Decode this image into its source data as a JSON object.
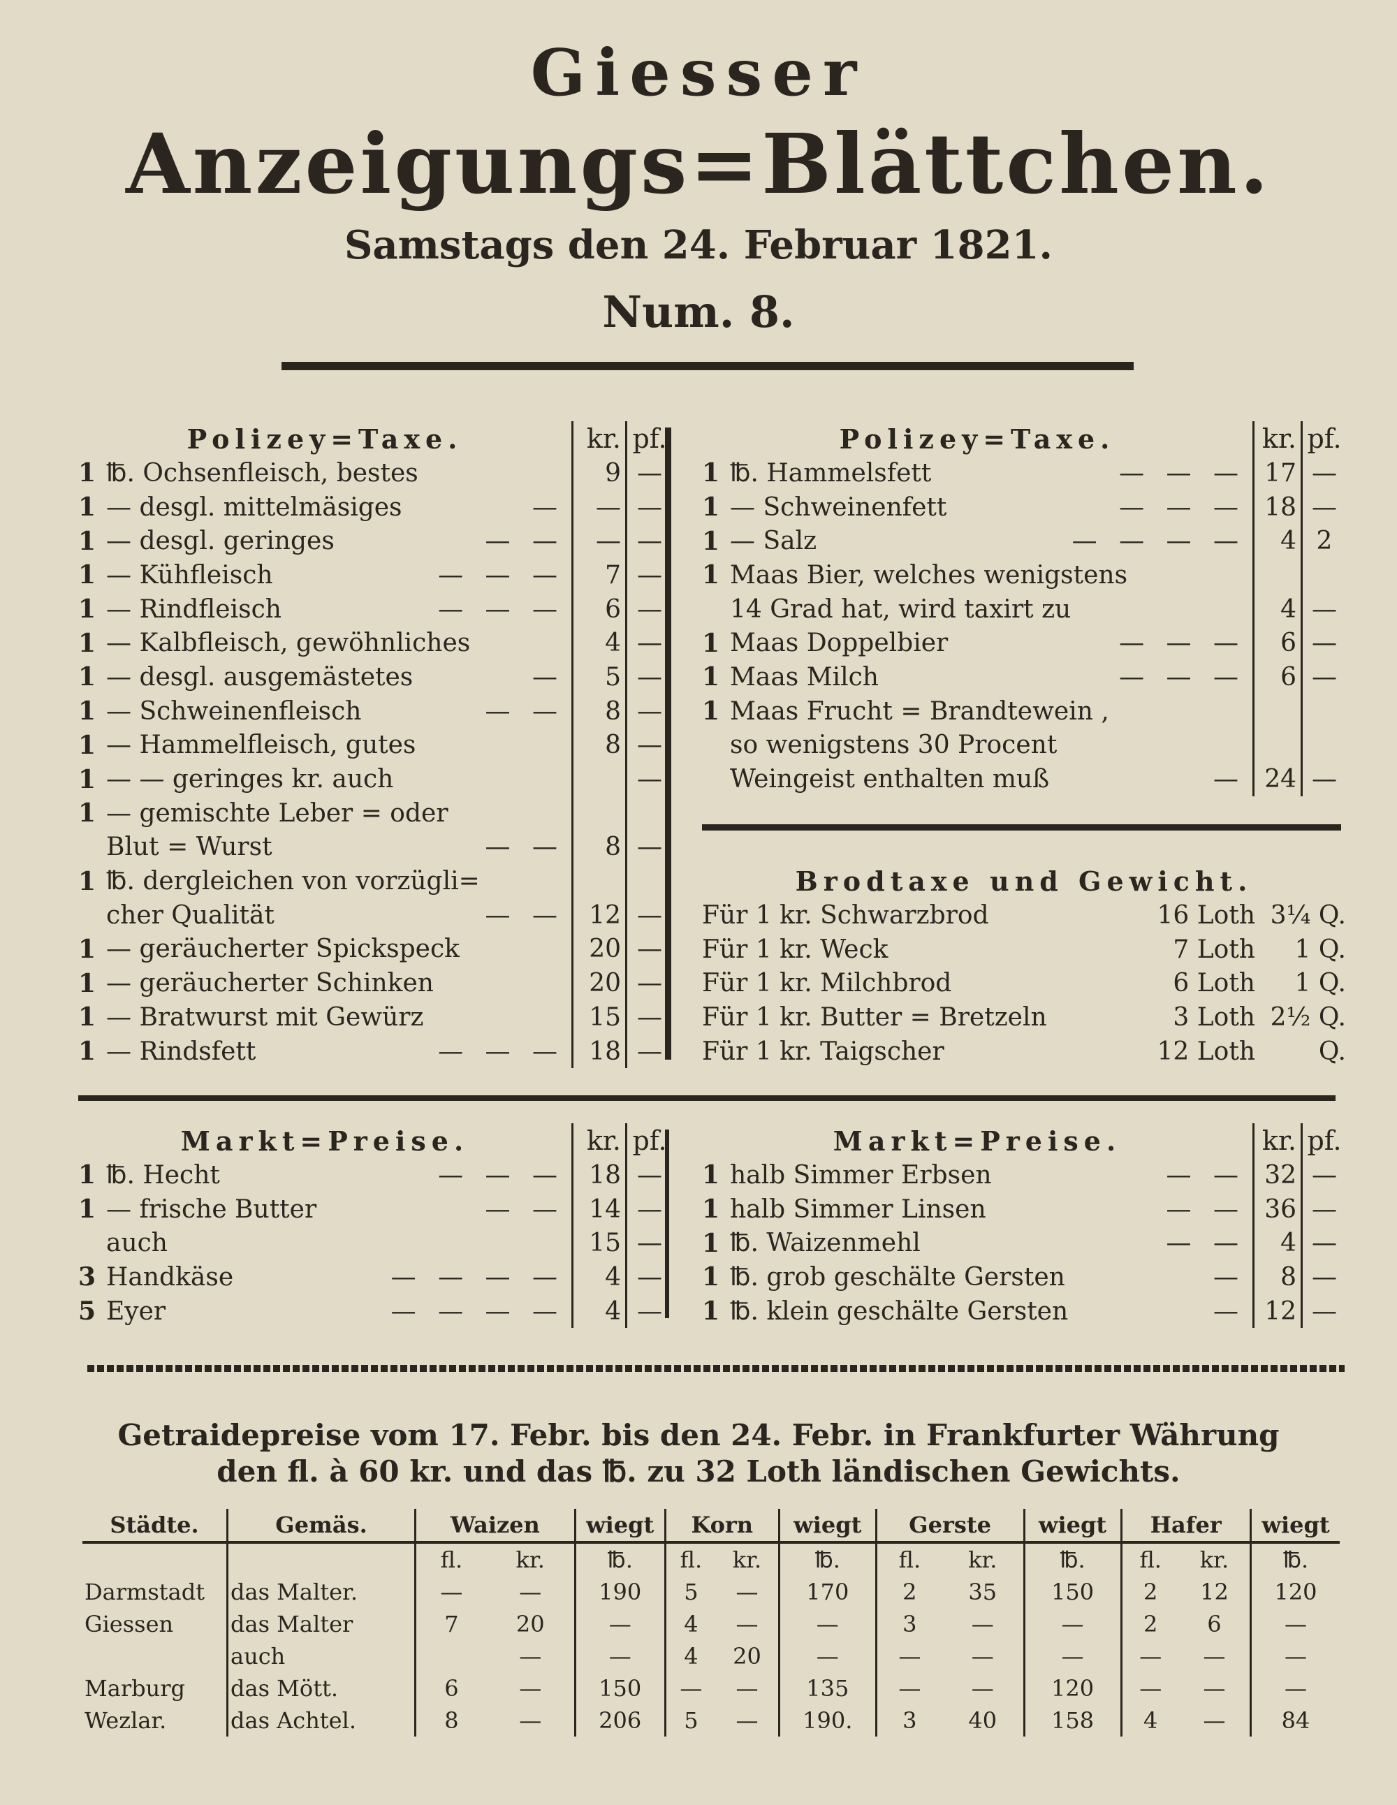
{
  "masthead": {
    "line1": "Giesser",
    "line2": "Anzeigungs=Blättchen.",
    "date": "Samstags den 24. Februar 1821.",
    "number": "Num. 8."
  },
  "polizey_left": {
    "title": "Polizey=Taxe.",
    "kr": "kr.",
    "pf": "pf.",
    "rows": [
      [
        "1",
        "℔. Ochsenfleisch, bestes",
        "",
        "9",
        "—"
      ],
      [
        "1",
        "— desgl. mittelmäsiges",
        "—",
        "—",
        "—"
      ],
      [
        "1",
        "— desgl. geringes",
        "— —",
        "—",
        "—"
      ],
      [
        "1",
        "— Kühfleisch",
        "— — —",
        "7",
        "—"
      ],
      [
        "1",
        "— Rindfleisch",
        "— — —",
        "6",
        "—"
      ],
      [
        "1",
        "— Kalbfleisch, gewöhnliches",
        "",
        "4",
        "—"
      ],
      [
        "1",
        "— desgl. ausgemästetes",
        "—",
        "5",
        "—"
      ],
      [
        "1",
        "— Schweinenfleisch",
        "— —",
        "8",
        "—"
      ],
      [
        "1",
        "— Hammelfleisch, gutes",
        "",
        "8",
        "—"
      ],
      [
        "1",
        "— — geringes kr. auch",
        "",
        "",
        "—"
      ],
      [
        "1",
        "— gemischte Leber = oder",
        "",
        "",
        ""
      ],
      [
        "",
        "Blut = Wurst",
        "— —",
        "8",
        "—"
      ],
      [
        "1",
        "℔. dergleichen von vorzügli=",
        "",
        "",
        ""
      ],
      [
        "",
        "cher Qualität",
        "— —",
        "12",
        "—"
      ],
      [
        "1",
        "— geräucherter Spickspeck",
        "",
        "20",
        "—"
      ],
      [
        "1",
        "— geräucherter Schinken",
        "",
        "20",
        "—"
      ],
      [
        "1",
        "— Bratwurst mit Gewürz",
        "",
        "15",
        "—"
      ],
      [
        "1",
        "— Rindsfett",
        "— — —",
        "18",
        "—"
      ]
    ]
  },
  "polizey_right": {
    "title": "Polizey=Taxe.",
    "kr": "kr.",
    "pf": "pf.",
    "rows": [
      [
        "1",
        "℔. Hammelsfett",
        "— — —",
        "17",
        "—"
      ],
      [
        "1",
        "— Schweinenfett",
        "— — —",
        "18",
        "—"
      ],
      [
        "1",
        "— Salz",
        "— — — —",
        "4",
        "2"
      ],
      [
        "1",
        "Maas Bier, welches wenigstens",
        "",
        "",
        ""
      ],
      [
        "",
        "14 Grad hat, wird taxirt zu",
        "",
        "4",
        "—"
      ],
      [
        "1",
        "Maas Doppelbier",
        "— — —",
        "6",
        "—"
      ],
      [
        "1",
        "Maas Milch",
        "— — —",
        "6",
        "—"
      ],
      [
        "1",
        "Maas Frucht = Brandtewein ,",
        "",
        "",
        ""
      ],
      [
        "",
        "so wenigstens 30 Procent",
        "",
        "",
        ""
      ],
      [
        "",
        "Weingeist enthalten muß",
        "—",
        "24",
        "—"
      ]
    ]
  },
  "brodtaxe": {
    "title": "Brodtaxe und Gewicht.",
    "rows": [
      [
        "Für 1 kr. Schwarzbrod",
        "16 Loth",
        "3¼ Q."
      ],
      [
        "Für 1 kr. Weck",
        "7 Loth",
        "1 Q."
      ],
      [
        "Für 1 kr. Milchbrod",
        "6 Loth",
        "1 Q."
      ],
      [
        "Für 1 kr. Butter = Bretzeln",
        "3 Loth",
        "2½ Q."
      ],
      [
        "Für 1 kr. Taigscher",
        "12 Loth",
        "Q."
      ]
    ]
  },
  "markt_left": {
    "title": "Markt=Preise.",
    "kr": "kr.",
    "pf": "pf.",
    "rows": [
      [
        "1",
        "℔. Hecht",
        "— — —",
        "18",
        "—"
      ],
      [
        "1",
        "— frische Butter",
        "— —",
        "14",
        "—"
      ],
      [
        "",
        "auch",
        "",
        "15",
        "—"
      ],
      [
        "3",
        "Handkäse",
        "— — — —",
        "4",
        "—"
      ],
      [
        "5",
        "Eyer",
        "— — — —",
        "4",
        "—"
      ]
    ]
  },
  "markt_right": {
    "title": "Markt=Preise.",
    "kr": "kr.",
    "pf": "pf.",
    "rows": [
      [
        "1",
        "halb Simmer Erbsen",
        "— —",
        "32",
        "—"
      ],
      [
        "1",
        "halb Simmer Linsen",
        "— —",
        "36",
        "—"
      ],
      [
        "1",
        "℔. Waizenmehl",
        "— —",
        "4",
        "—"
      ],
      [
        "1",
        "℔. grob geschälte Gersten",
        "—",
        "8",
        "—"
      ],
      [
        "1",
        "℔. klein geschälte Gersten",
        "—",
        "12",
        "—"
      ]
    ]
  },
  "getraide": {
    "heading1": "Getraidepreise vom 17. Febr. bis den 24. Febr. in Frankfurter Währung",
    "heading2": "den fl. à 60 kr. und das ℔. zu 32 Loth ländischen Gewichts.",
    "headers": [
      "Städte.",
      "Gemäs.",
      "Waizen",
      "wiegt",
      "Korn",
      "wiegt",
      "Gerste",
      "wiegt",
      "Hafer",
      "wiegt"
    ],
    "subheaders": [
      "",
      "",
      "fl.",
      "kr.",
      "℔.",
      "fl.",
      "kr.",
      "℔.",
      "fl.",
      "kr.",
      "℔.",
      "fl.",
      "kr.",
      "℔."
    ],
    "rows": [
      [
        "Darmstadt",
        "das Malter.",
        "—",
        "—",
        "190",
        "5",
        "—",
        "170",
        "2",
        "35",
        "150",
        "2",
        "12",
        "120"
      ],
      [
        "Giessen",
        "das Malter",
        "7",
        "20",
        "—",
        "4",
        "—",
        "—",
        "3",
        "—",
        "—",
        "2",
        "6",
        "—"
      ],
      [
        "",
        "auch",
        "",
        "—",
        "—",
        "4",
        "20",
        "—",
        "—",
        "—",
        "—",
        "—",
        "—",
        "—"
      ],
      [
        "Marburg",
        "das Mött.",
        "6",
        "—",
        "150",
        "—",
        "—",
        "135",
        "—",
        "—",
        "120",
        "—",
        "—",
        "—"
      ],
      [
        "Wezlar.",
        "das Achtel.",
        "8",
        "—",
        "206",
        "5",
        "—",
        "190.",
        "3",
        "40",
        "158",
        "4",
        "—",
        "84"
      ]
    ]
  }
}
